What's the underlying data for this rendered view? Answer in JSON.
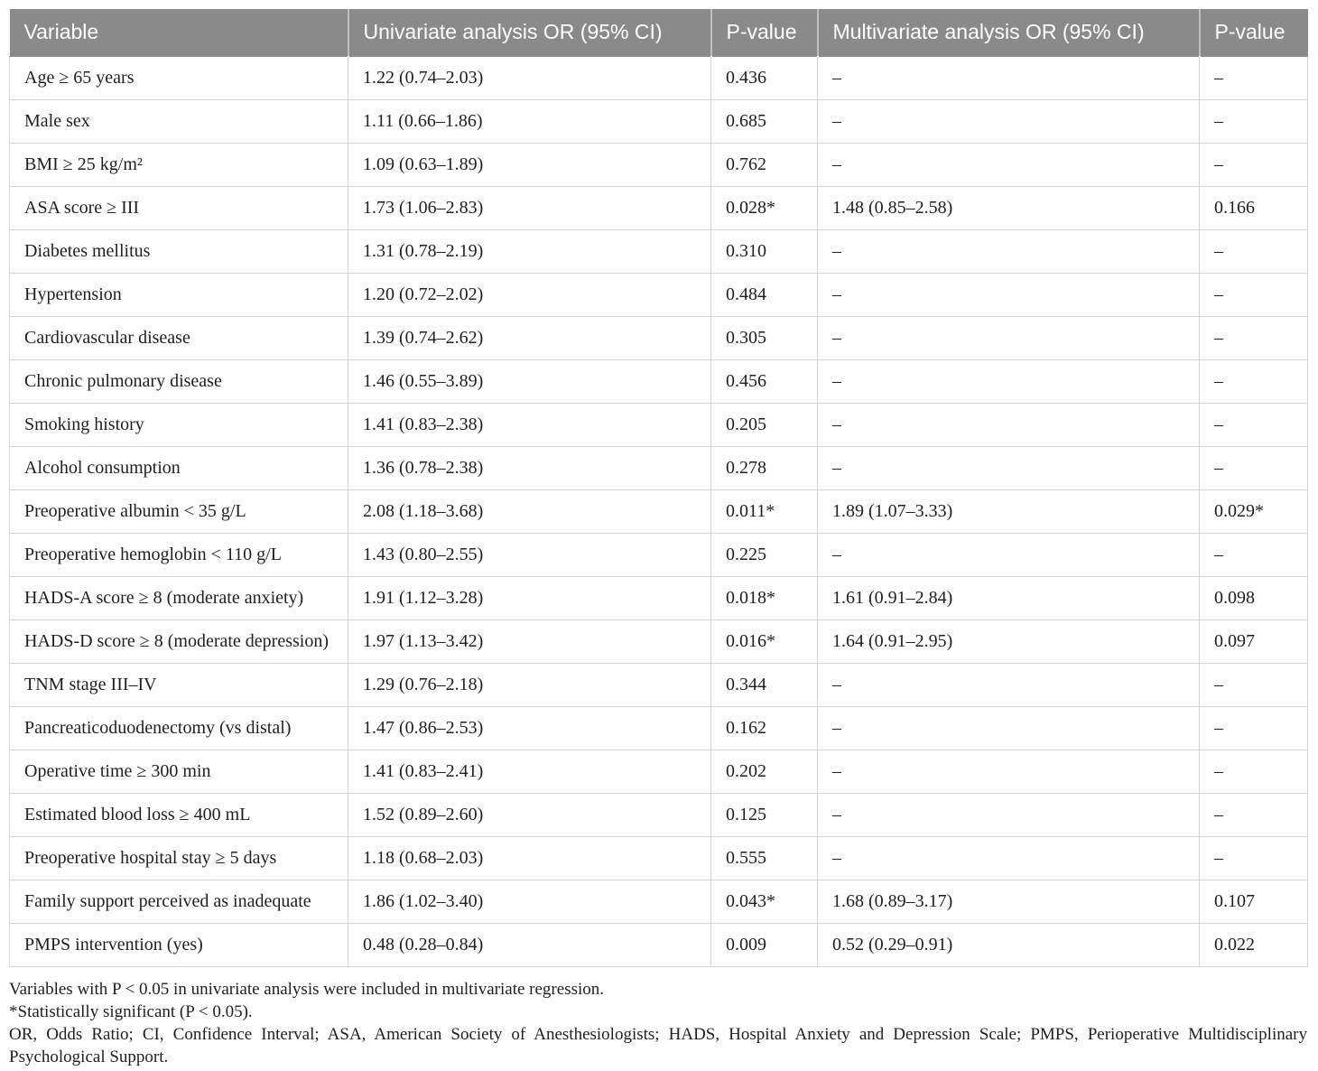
{
  "colors": {
    "header_bg": "#8a8a8a",
    "header_text": "#ffffff",
    "body_text": "#1f1f1f",
    "row_border": "#d5d5d5"
  },
  "table": {
    "columns": [
      "Variable",
      "Univariate analysis OR (95% CI)",
      "P-value",
      "Multivariate analysis OR (95% CI)",
      "P-value"
    ],
    "rows": [
      [
        "Age ≥ 65 years",
        "1.22 (0.74–2.03)",
        "0.436",
        "–",
        "–"
      ],
      [
        "Male sex",
        "1.11 (0.66–1.86)",
        "0.685",
        "–",
        "–"
      ],
      [
        "BMI ≥ 25 kg/m²",
        "1.09 (0.63–1.89)",
        "0.762",
        "–",
        "–"
      ],
      [
        "ASA score ≥ III",
        "1.73 (1.06–2.83)",
        "0.028*",
        "1.48 (0.85–2.58)",
        "0.166"
      ],
      [
        "Diabetes mellitus",
        "1.31 (0.78–2.19)",
        "0.310",
        "–",
        "–"
      ],
      [
        "Hypertension",
        "1.20 (0.72–2.02)",
        "0.484",
        "–",
        "–"
      ],
      [
        "Cardiovascular disease",
        "1.39 (0.74–2.62)",
        "0.305",
        "–",
        "–"
      ],
      [
        "Chronic pulmonary disease",
        "1.46 (0.55–3.89)",
        "0.456",
        "–",
        "–"
      ],
      [
        "Smoking history",
        "1.41 (0.83–2.38)",
        "0.205",
        "–",
        "–"
      ],
      [
        "Alcohol consumption",
        "1.36 (0.78–2.38)",
        "0.278",
        "–",
        "–"
      ],
      [
        "Preoperative albumin < 35 g/L",
        "2.08 (1.18–3.68)",
        "0.011*",
        "1.89 (1.07–3.33)",
        "0.029*"
      ],
      [
        "Preoperative hemoglobin < 110 g/L",
        "1.43 (0.80–2.55)",
        "0.225",
        "–",
        "–"
      ],
      [
        "HADS-A score ≥ 8 (moderate anxiety)",
        "1.91 (1.12–3.28)",
        "0.018*",
        "1.61 (0.91–2.84)",
        "0.098"
      ],
      [
        "HADS-D score ≥ 8 (moderate depression)",
        "1.97 (1.13–3.42)",
        "0.016*",
        "1.64 (0.91–2.95)",
        "0.097"
      ],
      [
        "TNM stage III–IV",
        "1.29 (0.76–2.18)",
        "0.344",
        "–",
        "–"
      ],
      [
        "Pancreaticoduodenectomy (vs distal)",
        "1.47 (0.86–2.53)",
        "0.162",
        "–",
        "–"
      ],
      [
        "Operative time ≥ 300 min",
        "1.41 (0.83–2.41)",
        "0.202",
        "–",
        "–"
      ],
      [
        "Estimated blood loss ≥ 400 mL",
        "1.52 (0.89–2.60)",
        "0.125",
        "–",
        "–"
      ],
      [
        "Preoperative hospital stay ≥ 5 days",
        "1.18 (0.68–2.03)",
        "0.555",
        "–",
        "–"
      ],
      [
        "Family support perceived as inadequate",
        "1.86 (1.02–3.40)",
        "0.043*",
        "1.68 (0.89–3.17)",
        "0.107"
      ],
      [
        "PMPS intervention (yes)",
        "0.48 (0.28–0.84)",
        "0.009",
        "0.52 (0.29–0.91)",
        "0.022"
      ]
    ]
  },
  "footnotes": {
    "line1": "Variables with P < 0.05 in univariate analysis were included in multivariate regression.",
    "line2": "*Statistically significant (P < 0.05).",
    "line3": "OR, Odds Ratio; CI, Confidence Interval; ASA, American Society of Anesthesiologists; HADS, Hospital Anxiety and Depression Scale; PMPS, Perioperative Multidisciplinary Psychological Support."
  }
}
